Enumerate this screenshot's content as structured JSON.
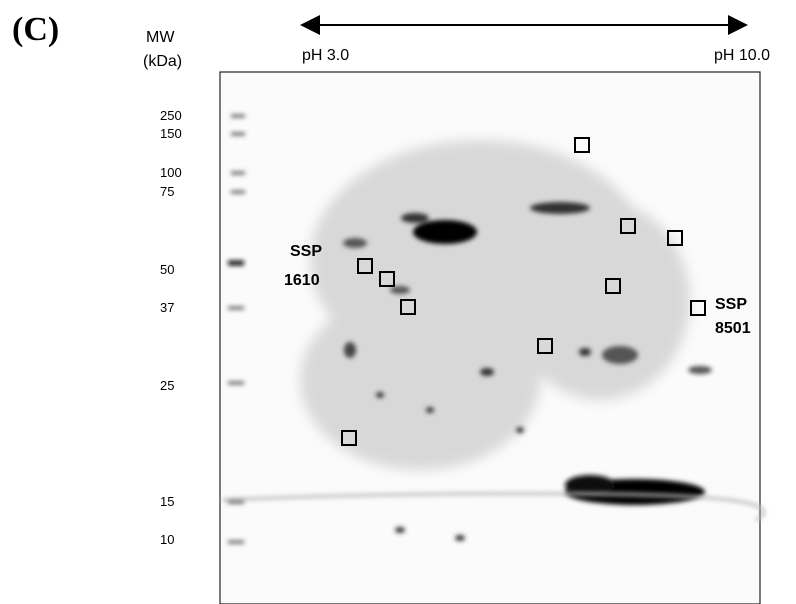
{
  "panel_label": "(C)",
  "mw_header": [
    "MW",
    "(kDa)"
  ],
  "ph_left": "pH 3.0",
  "ph_right": "pH 10.0",
  "mw_labels": [
    "250",
    "150",
    "100",
    "75",
    "50",
    "37",
    "25",
    "15",
    "10"
  ],
  "spot_labels": [
    [
      "SSP",
      "1610"
    ],
    [
      "SSP",
      "8501"
    ]
  ]
}
